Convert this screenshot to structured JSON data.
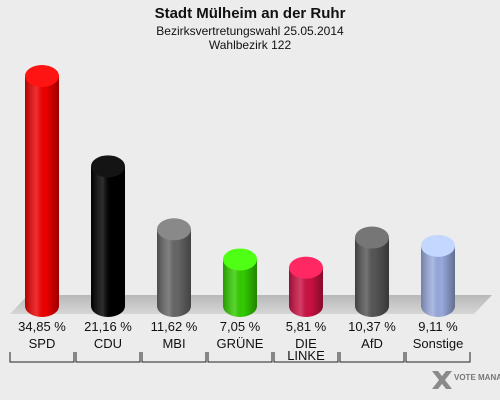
{
  "chart_data": {
    "type": "bar",
    "title": "Stadt Mülheim an der Ruhr",
    "subtitle": "Bezirksvertretungswahl 25.05.2014",
    "subtitle2": "Wahlbezirk 122",
    "categories": [
      "SPD",
      "CDU",
      "MBI",
      "GRÜNE",
      "DIE LINKE",
      "AfD",
      "Sonstige"
    ],
    "values": [
      34.85,
      21.16,
      11.62,
      7.05,
      5.81,
      10.37,
      9.11
    ],
    "value_labels": [
      "34,85 %",
      "21,16 %",
      "11,62 %",
      "7,05 %",
      "5,81 %",
      "10,37 %",
      "9,11 %"
    ],
    "colors": [
      "#ee0000",
      "#000000",
      "#666666",
      "#33cc00",
      "#cc1144",
      "#555555",
      "#99aadd"
    ],
    "ylim": [
      0,
      35
    ],
    "grid": false,
    "legend": "none"
  },
  "logo": {
    "text": "VOTE MANAGER"
  }
}
